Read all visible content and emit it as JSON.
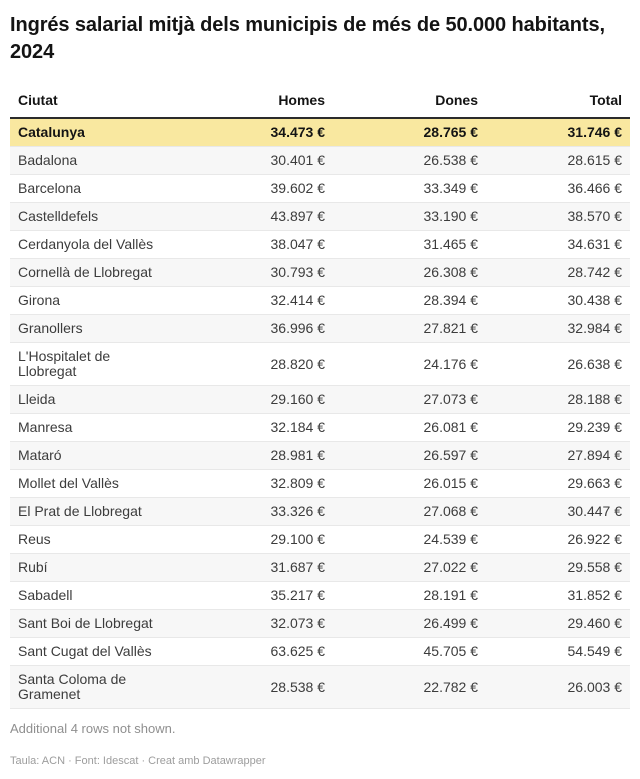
{
  "chart_data": {
    "type": "table",
    "title": "Ingrés salarial mitjà dels municipis de més de 50.000 habitants, 2024",
    "columns": [
      "Ciutat",
      "Homes",
      "Dones",
      "Total"
    ],
    "unit": "€",
    "rows": [
      {
        "ciutat": "Catalunya",
        "homes": 34473,
        "dones": 28765,
        "total": 31746,
        "highlight": true
      },
      {
        "ciutat": "Badalona",
        "homes": 30401,
        "dones": 26538,
        "total": 28615
      },
      {
        "ciutat": "Barcelona",
        "homes": 39602,
        "dones": 33349,
        "total": 36466
      },
      {
        "ciutat": "Castelldefels",
        "homes": 43897,
        "dones": 33190,
        "total": 38570
      },
      {
        "ciutat": "Cerdanyola del Vallès",
        "homes": 38047,
        "dones": 31465,
        "total": 34631
      },
      {
        "ciutat": "Cornellà de Llobregat",
        "homes": 30793,
        "dones": 26308,
        "total": 28742
      },
      {
        "ciutat": "Girona",
        "homes": 32414,
        "dones": 28394,
        "total": 30438
      },
      {
        "ciutat": "Granollers",
        "homes": 36996,
        "dones": 27821,
        "total": 32984
      },
      {
        "ciutat": "L'Hospitalet de\nLlobregat",
        "homes": 28820,
        "dones": 24176,
        "total": 26638
      },
      {
        "ciutat": "Lleida",
        "homes": 29160,
        "dones": 27073,
        "total": 28188
      },
      {
        "ciutat": "Manresa",
        "homes": 32184,
        "dones": 26081,
        "total": 29239
      },
      {
        "ciutat": "Mataró",
        "homes": 28981,
        "dones": 26597,
        "total": 27894
      },
      {
        "ciutat": "Mollet del Vallès",
        "homes": 32809,
        "dones": 26015,
        "total": 29663
      },
      {
        "ciutat": "El Prat de Llobregat",
        "homes": 33326,
        "dones": 27068,
        "total": 30447
      },
      {
        "ciutat": "Reus",
        "homes": 29100,
        "dones": 24539,
        "total": 26922
      },
      {
        "ciutat": "Rubí",
        "homes": 31687,
        "dones": 27022,
        "total": 29558
      },
      {
        "ciutat": "Sabadell",
        "homes": 35217,
        "dones": 28191,
        "total": 31852
      },
      {
        "ciutat": "Sant Boi de Llobregat",
        "homes": 32073,
        "dones": 26499,
        "total": 29460
      },
      {
        "ciutat": "Sant Cugat del Vallès",
        "homes": 63625,
        "dones": 45705,
        "total": 54549
      },
      {
        "ciutat": "Santa Coloma de\nGramenet",
        "homes": 28538,
        "dones": 22782,
        "total": 26003
      }
    ]
  },
  "footer": {
    "note": "Additional 4 rows not shown.",
    "attribution": "Taula: ACN · Font: Idescat · Creat amb Datawrapper"
  },
  "colors": {
    "highlight_bg": "#f9e8a0",
    "stripe_bg": "#f7f7f7",
    "row_border": "#e8e8e8",
    "header_border": "#2b2b2b",
    "text": "#3c3c3c",
    "text_strong": "#141414",
    "note_text": "#8f8f8f",
    "attribution_text": "#9d9d9d"
  }
}
